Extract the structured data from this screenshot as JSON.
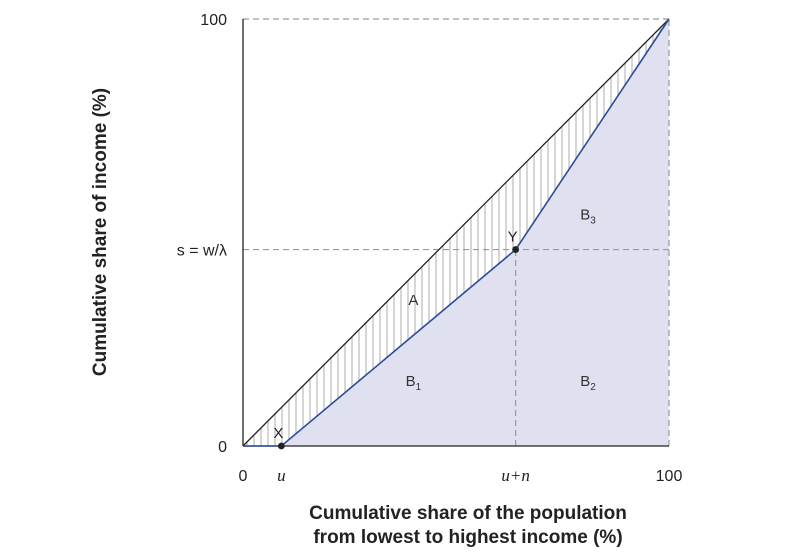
{
  "chart_data": {
    "type": "line",
    "title": "",
    "xlabel_lines": [
      "Cumulative share of the population",
      "from lowest to highest income (%)"
    ],
    "ylabel": "Cumulative share of income (%)",
    "xlim": [
      0,
      100
    ],
    "ylim": [
      0,
      100
    ],
    "x_ticks": [
      {
        "value": 0,
        "label": "0",
        "italic": false
      },
      {
        "value": 9,
        "label": "u",
        "italic": true
      },
      {
        "value": 64,
        "label": "u+n",
        "italic": true
      },
      {
        "value": 100,
        "label": "100",
        "italic": false
      }
    ],
    "y_ticks": [
      {
        "value": 0,
        "label": "0"
      },
      {
        "value": 46,
        "label": "s = w/λ"
      },
      {
        "value": 100,
        "label": "100"
      }
    ],
    "series": [
      {
        "role": "equality-line",
        "color": "#222222",
        "points": [
          [
            0,
            0
          ],
          [
            100,
            100
          ]
        ]
      },
      {
        "role": "lorenz-curve",
        "color": "#2e4c9a",
        "points": [
          [
            0,
            0
          ],
          [
            9,
            0
          ],
          [
            64,
            46
          ],
          [
            100,
            100
          ]
        ]
      }
    ],
    "points": [
      {
        "label": "X",
        "x": 9,
        "y": 0
      },
      {
        "label": "Y",
        "x": 64,
        "y": 46
      }
    ],
    "regions": [
      {
        "label": "A",
        "sub": "",
        "x": 40,
        "y": 33
      },
      {
        "label": "B",
        "sub": "1",
        "x": 40,
        "y": 14
      },
      {
        "label": "B",
        "sub": "2",
        "x": 81,
        "y": 14
      },
      {
        "label": "B",
        "sub": "3",
        "x": 81,
        "y": 53
      }
    ],
    "guides": [
      {
        "from": [
          0,
          100
        ],
        "to": [
          100,
          100
        ]
      },
      {
        "from": [
          100,
          0
        ],
        "to": [
          100,
          100
        ]
      },
      {
        "from": [
          0,
          46
        ],
        "to": [
          100,
          46
        ]
      },
      {
        "from": [
          64,
          0
        ],
        "to": [
          64,
          46
        ]
      }
    ],
    "colors": {
      "fill_below": "#dfe1f0",
      "hatch": "#bfbfbf",
      "guide": "#9a9a9a",
      "axis": "#222222"
    }
  }
}
